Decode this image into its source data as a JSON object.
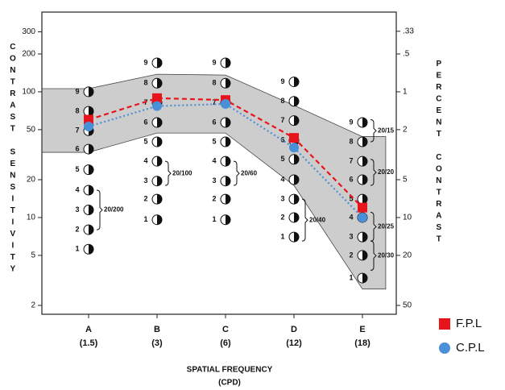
{
  "chart_data": {
    "type": "line",
    "y_label": "CONTRAST SENSITIVITY",
    "y2_label": "PERCENT CONTRAST",
    "x_label": "SPATIAL FREQUENCY",
    "x_unit": "(CPD)",
    "categories": [
      "A",
      "B",
      "C",
      "D",
      "E"
    ],
    "category_sublabels": [
      "(1.5)",
      "(3)",
      "(6)",
      "(12)",
      "(18)"
    ],
    "log_scale": true,
    "ylim": [
      2,
      400
    ],
    "yticks": [
      2,
      5,
      10,
      20,
      50,
      100,
      200,
      300
    ],
    "y2lim": [
      50,
      0.25
    ],
    "y2ticks": [
      50,
      20,
      10,
      5,
      2,
      1,
      {
        "value": 0.5,
        "label": ".5"
      },
      {
        "value": 0.33,
        "label": ".33"
      }
    ],
    "band": {
      "color": "#c8c8c8",
      "upper": [
        106,
        138,
        136,
        78,
        44
      ],
      "lower": [
        33,
        47,
        47,
        18,
        2.7
      ]
    },
    "series": [
      {
        "name": "F.P.L",
        "color": "#e8141c",
        "values": [
          60,
          89,
          86,
          43,
          12
        ]
      },
      {
        "name": "C.P.L",
        "color": "#4a90d9",
        "values": [
          53,
          77,
          80,
          36,
          10
        ]
      }
    ],
    "cards": [
      {
        "labels": [
          "1",
          "2",
          "3",
          "4",
          "5",
          "6",
          "7",
          "8",
          "9"
        ],
        "values": [
          5.6,
          8,
          11.5,
          16.5,
          24,
          35,
          49,
          70,
          100
        ]
      },
      {
        "labels": [
          "1",
          "2",
          "3",
          "4",
          "5",
          "6",
          "7",
          "8",
          "9"
        ],
        "values": [
          9.6,
          14,
          19.5,
          28,
          40,
          57,
          82,
          117,
          170
        ]
      },
      {
        "labels": [
          "1",
          "2",
          "3",
          "4",
          "5",
          "6",
          "7",
          "8",
          "9"
        ],
        "values": [
          9.6,
          14,
          19.5,
          28,
          40,
          57,
          82,
          117,
          170
        ]
      },
      {
        "labels": [
          "1",
          "2",
          "3",
          "4",
          "5",
          "6",
          "7",
          "8",
          "9"
        ],
        "values": [
          7,
          10,
          14,
          20,
          29,
          41,
          59,
          84,
          120
        ]
      },
      {
        "labels": [
          "1",
          "2",
          "3",
          "4",
          "5",
          "6",
          "7",
          "8",
          "9"
        ],
        "values": [
          3.3,
          5,
          7,
          10,
          14,
          20,
          28,
          40,
          57
        ]
      }
    ],
    "acuity": [
      {
        "label": "20/200",
        "category": 0,
        "range": [
          8,
          16.5
        ]
      },
      {
        "label": "20/100",
        "category": 1,
        "range": [
          18,
          28
        ]
      },
      {
        "label": "20/60",
        "category": 2,
        "range": [
          18,
          28
        ]
      },
      {
        "label": "20/40",
        "category": 3,
        "range": [
          6.5,
          14
        ]
      },
      {
        "label": "20/15",
        "category": 4,
        "range": [
          40,
          60
        ]
      },
      {
        "label": "20/20",
        "category": 4,
        "range": [
          18,
          29
        ]
      },
      {
        "label": "20/25",
        "category": 4,
        "range": [
          6.5,
          11
        ]
      },
      {
        "label": "20/30",
        "category": 4,
        "range": [
          3.8,
          6.5
        ]
      }
    ],
    "legend": "bottom-right"
  }
}
